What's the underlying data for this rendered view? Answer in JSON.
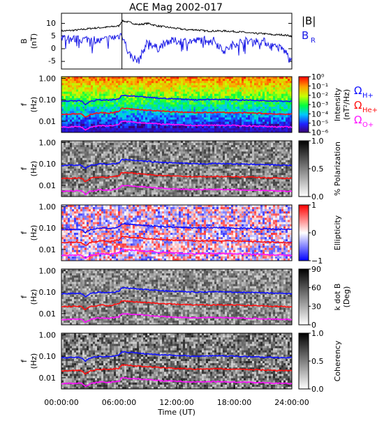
{
  "title": "ACE Mag 2002-017",
  "time_axis": {
    "label": "Time (UT)",
    "ticks": [
      "00:00:00",
      "06:00:00",
      "12:00:00",
      "18:00:00",
      "24:00:00"
    ],
    "range_hours": [
      0,
      24
    ]
  },
  "freq_ticks": [
    "1.00",
    "0.10",
    "0.01"
  ],
  "colors": {
    "br": "#1a1ae6",
    "btotal": "#000000",
    "h_plus": "#1010ff",
    "he_plus": "#ff1010",
    "o_plus": "#ff10ff"
  },
  "legend": {
    "b_total": "|B|",
    "b_r_main": "B",
    "b_r_sub": "R",
    "omega": "Ω",
    "h_sub": "H+",
    "he_sub": "He+",
    "o_sub": "O+"
  },
  "panels": {
    "b": {
      "ylabel1": "B",
      "ylabel2": "(nT)",
      "ticks": [
        "10",
        "5",
        "0",
        "-5"
      ]
    },
    "intensity": {
      "ylabel1": "f",
      "ylabel2": "(Hz)",
      "cb_label1": "Intensity",
      "cb_label2": "(nT²/Hz)",
      "cb_ticks": [
        "10⁰",
        "10⁻¹",
        "10⁻²",
        "10⁻³",
        "10⁻⁴",
        "10⁻⁵",
        "10⁻⁶"
      ]
    },
    "polarization": {
      "ylabel1": "f",
      "ylabel2": "(Hz)",
      "cb_label": "% Polarization",
      "cb_ticks": [
        "1.0",
        "0.5",
        "0.0"
      ]
    },
    "ellipticity": {
      "ylabel1": "f",
      "ylabel2": "(Hz)",
      "cb_label": "Ellipticity",
      "cb_ticks": [
        "1",
        "0",
        "−1"
      ]
    },
    "kdotb": {
      "ylabel1": "f",
      "ylabel2": "(Hz)",
      "cb_label1": "k dot B",
      "cb_label2": "(Deg)",
      "cb_ticks": [
        "90",
        "60",
        "30",
        "0"
      ]
    },
    "coherency": {
      "ylabel1": "f",
      "ylabel2": "(Hz)",
      "cb_label": "Coherency",
      "cb_ticks": [
        "1.0",
        "0.5",
        "0.0"
      ]
    }
  },
  "chart_data": {
    "type": "line",
    "title": "ACE Mag 2002-017",
    "xlabel": "Time (UT)",
    "xlim_hours": [
      0,
      24
    ],
    "magnetic_field": {
      "ylabel": "B (nT)",
      "ylim": [
        -8,
        14
      ],
      "x_hours": [
        0,
        1,
        2,
        3,
        4,
        5,
        6,
        6.3,
        7,
        8,
        9,
        10,
        11,
        12,
        13,
        14,
        15,
        16,
        17,
        18,
        19,
        20,
        21,
        22,
        23,
        24
      ],
      "series": [
        {
          "name": "|B|",
          "values": [
            7,
            7.2,
            7.5,
            8,
            8.3,
            8.6,
            9,
            11,
            10.5,
            9.5,
            10,
            9,
            8.5,
            8,
            7.5,
            7.5,
            7,
            7,
            7,
            6.8,
            6.5,
            6,
            6,
            5.5,
            5.5,
            5
          ]
        },
        {
          "name": "B_R",
          "values": [
            4.5,
            4,
            3.5,
            4,
            3,
            4,
            5,
            6,
            -2,
            -5,
            3,
            0,
            3,
            3,
            3,
            3,
            4,
            3,
            -1,
            2,
            3,
            3,
            3,
            1,
            0,
            -4
          ]
        }
      ]
    },
    "cyclotron_frequencies_hz": {
      "x_hours": [
        0,
        2,
        2.5,
        3,
        4,
        5,
        6,
        6.3,
        8,
        10,
        12,
        14,
        16,
        18,
        20,
        22,
        24
      ],
      "series": [
        {
          "name": "Ω H+",
          "values": [
            0.085,
            0.09,
            0.06,
            0.085,
            0.1,
            0.095,
            0.11,
            0.16,
            0.14,
            0.12,
            0.11,
            0.1,
            0.105,
            0.1,
            0.095,
            0.09,
            0.085
          ]
        },
        {
          "name": "Ω He+",
          "values": [
            0.021,
            0.022,
            0.015,
            0.021,
            0.025,
            0.024,
            0.028,
            0.04,
            0.035,
            0.03,
            0.027,
            0.025,
            0.026,
            0.025,
            0.024,
            0.022,
            0.021
          ]
        },
        {
          "name": "Ω O+",
          "values": [
            0.0053,
            0.0056,
            0.0038,
            0.0053,
            0.0063,
            0.006,
            0.007,
            0.01,
            0.0088,
            0.0075,
            0.0068,
            0.0063,
            0.0065,
            0.0063,
            0.006,
            0.0056,
            0.0053
          ]
        }
      ]
    },
    "spectrogram_panels": [
      {
        "name": "Intensity",
        "units": "nT²/Hz",
        "type": "heatmap",
        "scale": "log",
        "range": [
          1e-06,
          1
        ]
      },
      {
        "name": "% Polarization",
        "type": "heatmap",
        "range": [
          0,
          1
        ]
      },
      {
        "name": "Ellipticity",
        "type": "heatmap",
        "range": [
          -1,
          1
        ]
      },
      {
        "name": "k dot B",
        "units": "Deg",
        "type": "heatmap",
        "range": [
          0,
          90
        ]
      },
      {
        "name": "Coherency",
        "type": "heatmap",
        "range": [
          0,
          1
        ]
      }
    ],
    "frequency_axis": {
      "scale": "log",
      "ylim_hz": [
        0.003,
        1.2
      ]
    }
  }
}
